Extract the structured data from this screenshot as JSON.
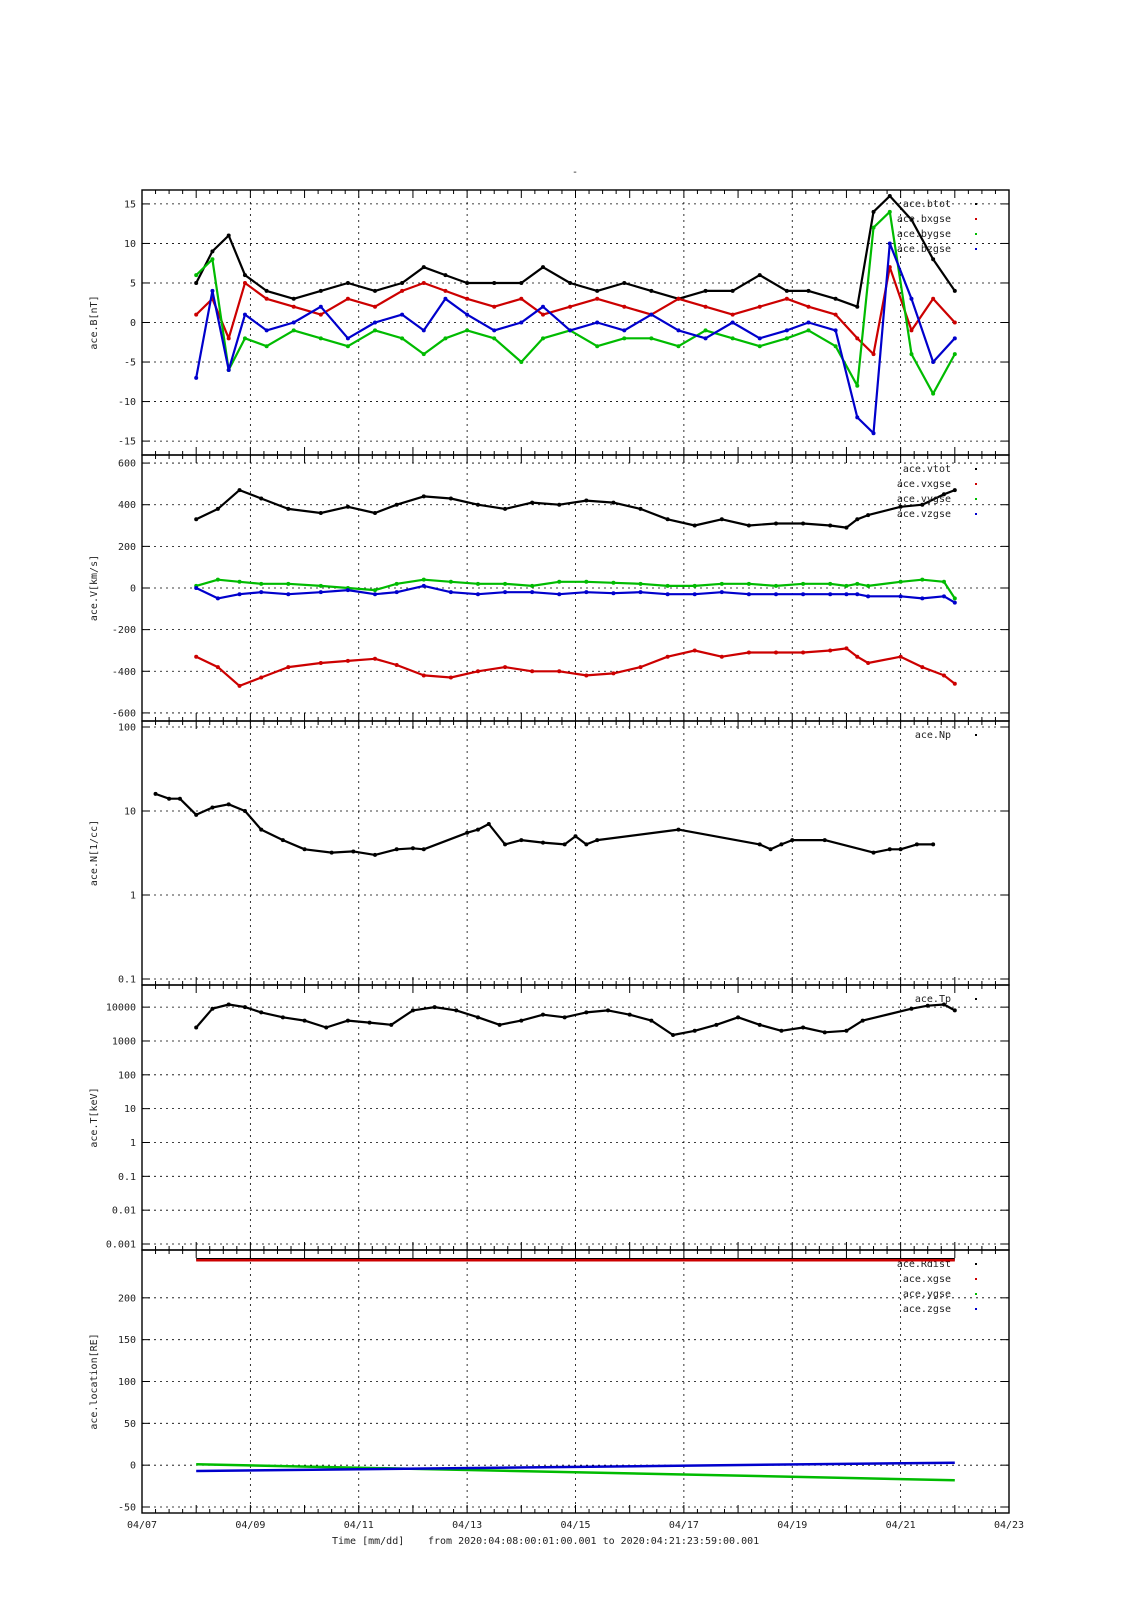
{
  "title": "-",
  "footer": {
    "xlabel": "Time [mm/dd]",
    "range_text": "from 2020:04:08:00:01:00.001  to  2020:04:21:23:59:00.001"
  },
  "colors": {
    "black": "#000000",
    "red": "#cc0000",
    "green": "#00bb00",
    "blue": "#0000cc"
  },
  "chart_data": [
    {
      "type": "scatter",
      "ylabel": "ace.B[nT]",
      "ylim": [
        -16,
        16
      ],
      "yticks": [
        -15,
        -10,
        -5,
        0,
        5,
        10,
        15
      ],
      "ytick_labels": [
        "-15",
        "-10",
        "-5",
        "0",
        "5",
        "10",
        "15"
      ],
      "xlim_days": [
        7,
        23
      ],
      "xticks": [
        "04/07",
        "04/09",
        "04/11",
        "04/13",
        "04/15",
        "04/17",
        "04/19",
        "04/21",
        "04/23"
      ],
      "grid": true,
      "legend_position": "top-right",
      "series": [
        {
          "name": "ace.btot",
          "color": "#000000",
          "x": [
            8.0,
            8.3,
            8.6,
            8.9,
            9.3,
            9.8,
            10.3,
            10.8,
            11.3,
            11.8,
            12.2,
            12.6,
            13.0,
            13.5,
            14.0,
            14.4,
            14.9,
            15.4,
            15.9,
            16.4,
            16.9,
            17.4,
            17.9,
            18.4,
            18.9,
            19.3,
            19.8,
            20.2,
            20.5,
            20.8,
            21.2,
            21.6,
            22.0
          ],
          "y": [
            5,
            9,
            11,
            6,
            4,
            3,
            4,
            5,
            4,
            5,
            7,
            6,
            5,
            5,
            5,
            7,
            5,
            4,
            5,
            4,
            3,
            4,
            4,
            6,
            4,
            4,
            3,
            2,
            14,
            16,
            13,
            8,
            4
          ]
        },
        {
          "name": "ace.bxgse",
          "color": "#cc0000",
          "x": [
            8.0,
            8.3,
            8.6,
            8.9,
            9.3,
            9.8,
            10.3,
            10.8,
            11.3,
            11.8,
            12.2,
            12.6,
            13.0,
            13.5,
            14.0,
            14.4,
            14.9,
            15.4,
            15.9,
            16.4,
            16.9,
            17.4,
            17.9,
            18.4,
            18.9,
            19.3,
            19.8,
            20.2,
            20.5,
            20.8,
            21.2,
            21.6,
            22.0
          ],
          "y": [
            1,
            3,
            -2,
            5,
            3,
            2,
            1,
            3,
            2,
            4,
            5,
            4,
            3,
            2,
            3,
            1,
            2,
            3,
            2,
            1,
            3,
            2,
            1,
            2,
            3,
            2,
            1,
            -2,
            -4,
            7,
            -1,
            3,
            0
          ]
        },
        {
          "name": "ace.bygse",
          "color": "#00bb00",
          "x": [
            8.0,
            8.3,
            8.6,
            8.9,
            9.3,
            9.8,
            10.3,
            10.8,
            11.3,
            11.8,
            12.2,
            12.6,
            13.0,
            13.5,
            14.0,
            14.4,
            14.9,
            15.4,
            15.9,
            16.4,
            16.9,
            17.4,
            17.9,
            18.4,
            18.9,
            19.3,
            19.8,
            20.2,
            20.5,
            20.8,
            21.2,
            21.6,
            22.0
          ],
          "y": [
            6,
            8,
            -6,
            -2,
            -3,
            -1,
            -2,
            -3,
            -1,
            -2,
            -4,
            -2,
            -1,
            -2,
            -5,
            -2,
            -1,
            -3,
            -2,
            -2,
            -3,
            -1,
            -2,
            -3,
            -2,
            -1,
            -3,
            -8,
            12,
            14,
            -4,
            -9,
            -4
          ]
        },
        {
          "name": "ace.bzgse",
          "color": "#0000cc",
          "x": [
            8.0,
            8.3,
            8.6,
            8.9,
            9.3,
            9.8,
            10.3,
            10.8,
            11.3,
            11.8,
            12.2,
            12.6,
            13.0,
            13.5,
            14.0,
            14.4,
            14.9,
            15.4,
            15.9,
            16.4,
            16.9,
            17.4,
            17.9,
            18.4,
            18.9,
            19.3,
            19.8,
            20.2,
            20.5,
            20.8,
            21.2,
            21.6,
            22.0
          ],
          "y": [
            -7,
            4,
            -6,
            1,
            -1,
            0,
            2,
            -2,
            0,
            1,
            -1,
            3,
            1,
            -1,
            0,
            2,
            -1,
            0,
            -1,
            1,
            -1,
            -2,
            0,
            -2,
            -1,
            0,
            -1,
            -12,
            -14,
            10,
            3,
            -5,
            -2
          ]
        }
      ]
    },
    {
      "type": "scatter",
      "ylabel": "ace.V[km/s]",
      "ylim": [
        -610,
        610
      ],
      "yticks": [
        -600,
        -400,
        -200,
        0,
        200,
        400,
        600
      ],
      "ytick_labels": [
        "-600",
        "-400",
        "-200",
        "0",
        "200",
        "400",
        "600"
      ],
      "xlim_days": [
        7,
        23
      ],
      "grid": true,
      "legend_position": "top-right",
      "series": [
        {
          "name": "ace.vtot",
          "color": "#000000",
          "x": [
            8.0,
            8.4,
            8.8,
            9.2,
            9.7,
            10.3,
            10.8,
            11.3,
            11.7,
            12.2,
            12.7,
            13.2,
            13.7,
            14.2,
            14.7,
            15.2,
            15.7,
            16.2,
            16.7,
            17.2,
            17.7,
            18.2,
            18.7,
            19.2,
            19.7,
            20.0,
            20.2,
            20.4,
            21.0,
            21.4,
            21.8,
            22.0
          ],
          "y": [
            330,
            380,
            470,
            430,
            380,
            360,
            390,
            360,
            400,
            440,
            430,
            400,
            380,
            410,
            400,
            420,
            410,
            380,
            330,
            300,
            330,
            300,
            310,
            310,
            300,
            290,
            330,
            350,
            390,
            400,
            450,
            470
          ]
        },
        {
          "name": "ace.vxgse",
          "color": "#cc0000",
          "x": [
            8.0,
            8.4,
            8.8,
            9.2,
            9.7,
            10.3,
            10.8,
            11.3,
            11.7,
            12.2,
            12.7,
            13.2,
            13.7,
            14.2,
            14.7,
            15.2,
            15.7,
            16.2,
            16.7,
            17.2,
            17.7,
            18.2,
            18.7,
            19.2,
            19.7,
            20.0,
            20.2,
            20.4,
            21.0,
            21.4,
            21.8,
            22.0
          ],
          "y": [
            -330,
            -380,
            -470,
            -430,
            -380,
            -360,
            -350,
            -340,
            -370,
            -420,
            -430,
            -400,
            -380,
            -400,
            -400,
            -420,
            -410,
            -380,
            -330,
            -300,
            -330,
            -310,
            -310,
            -310,
            -300,
            -290,
            -330,
            -360,
            -330,
            -380,
            -420,
            -460
          ]
        },
        {
          "name": "ace.vygse",
          "color": "#00bb00",
          "x": [
            8.0,
            8.4,
            8.8,
            9.2,
            9.7,
            10.3,
            10.8,
            11.3,
            11.7,
            12.2,
            12.7,
            13.2,
            13.7,
            14.2,
            14.7,
            15.2,
            15.7,
            16.2,
            16.7,
            17.2,
            17.7,
            18.2,
            18.7,
            19.2,
            19.7,
            20.0,
            20.2,
            20.4,
            21.0,
            21.4,
            21.8,
            22.0
          ],
          "y": [
            10,
            40,
            30,
            20,
            20,
            10,
            0,
            -10,
            20,
            40,
            30,
            20,
            20,
            10,
            30,
            30,
            25,
            20,
            10,
            10,
            20,
            20,
            10,
            20,
            20,
            10,
            20,
            10,
            30,
            40,
            30,
            -50
          ]
        },
        {
          "name": "ace.vzgse",
          "color": "#0000cc",
          "x": [
            8.0,
            8.4,
            8.8,
            9.2,
            9.7,
            10.3,
            10.8,
            11.3,
            11.7,
            12.2,
            12.7,
            13.2,
            13.7,
            14.2,
            14.7,
            15.2,
            15.7,
            16.2,
            16.7,
            17.2,
            17.7,
            18.2,
            18.7,
            19.2,
            19.7,
            20.0,
            20.2,
            20.4,
            21.0,
            21.4,
            21.8,
            22.0
          ],
          "y": [
            0,
            -50,
            -30,
            -20,
            -30,
            -20,
            -10,
            -30,
            -20,
            10,
            -20,
            -30,
            -20,
            -20,
            -30,
            -20,
            -25,
            -20,
            -30,
            -30,
            -20,
            -30,
            -30,
            -30,
            -30,
            -30,
            -30,
            -40,
            -40,
            -50,
            -40,
            -70
          ]
        }
      ]
    },
    {
      "type": "scatter",
      "ylabel": "ace.N[1/cc]",
      "yscale": "log",
      "ylim": [
        0.1,
        100
      ],
      "yticks": [
        0.1,
        1,
        10,
        100
      ],
      "ytick_labels": [
        "0.1",
        "1",
        "10",
        "100"
      ],
      "xlim_days": [
        7,
        23
      ],
      "grid": true,
      "legend_position": "top-right",
      "series": [
        {
          "name": "ace.Np",
          "color": "#000000",
          "x": [
            7.25,
            7.5,
            7.7,
            8.0,
            8.3,
            8.6,
            8.9,
            9.2,
            9.6,
            10.0,
            10.5,
            10.9,
            11.3,
            11.7,
            12.0,
            12.2,
            13.0,
            13.2,
            13.4,
            13.7,
            14.0,
            14.4,
            14.8,
            15.0,
            15.2,
            15.4,
            16.9,
            18.4,
            18.6,
            18.8,
            19.0,
            19.6,
            20.5,
            20.8,
            21.0,
            21.3,
            21.6
          ],
          "y": [
            16,
            14,
            14,
            9,
            11,
            12,
            10,
            6,
            4.5,
            3.5,
            3.2,
            3.3,
            3.0,
            3.5,
            3.6,
            3.5,
            5.5,
            6,
            7,
            4,
            4.5,
            4.2,
            4.0,
            5,
            4,
            4.5,
            6,
            4,
            3.5,
            4,
            4.5,
            4.5,
            3.2,
            3.5,
            3.5,
            4,
            4
          ]
        }
      ]
    },
    {
      "type": "scatter",
      "ylabel": "ace.T[keV]",
      "yscale": "log",
      "ylim": [
        0.001,
        30000
      ],
      "yticks": [
        0.001,
        0.01,
        0.1,
        1,
        10,
        100,
        1000,
        10000
      ],
      "ytick_labels": [
        "0.001",
        "0.01",
        "0.1",
        "1",
        "10",
        "100",
        "1000",
        "10000"
      ],
      "xlim_days": [
        7,
        23
      ],
      "grid": true,
      "legend_position": "top-right",
      "series": [
        {
          "name": "ace.Tp",
          "color": "#000000",
          "x": [
            8.0,
            8.3,
            8.6,
            8.9,
            9.2,
            9.6,
            10.0,
            10.4,
            10.8,
            11.2,
            11.6,
            12.0,
            12.4,
            12.8,
            13.2,
            13.6,
            14.0,
            14.4,
            14.8,
            15.2,
            15.6,
            16.0,
            16.4,
            16.8,
            17.2,
            17.6,
            18.0,
            18.4,
            18.8,
            19.2,
            19.6,
            20.0,
            20.3,
            21.2,
            21.5,
            21.8,
            22.0
          ],
          "y": [
            2500,
            9000,
            12000,
            10000,
            7000,
            5000,
            4000,
            2500,
            4000,
            3500,
            3000,
            8000,
            10000,
            8000,
            5000,
            3000,
            4000,
            6000,
            5000,
            7000,
            8000,
            6000,
            4000,
            1500,
            2000,
            3000,
            5000,
            3000,
            2000,
            2500,
            1800,
            2000,
            4000,
            9000,
            11000,
            12000,
            8000
          ]
        }
      ]
    },
    {
      "type": "line",
      "ylabel": "ace.location[RE]",
      "ylim": [
        -50,
        250
      ],
      "yticks": [
        -50,
        0,
        50,
        100,
        150,
        200
      ],
      "ytick_labels": [
        "-50",
        "0",
        "50",
        "100",
        "150",
        "200"
      ],
      "xlim_days": [
        7,
        23
      ],
      "xtick_labels": [
        "04/07",
        "04/09",
        "04/11",
        "04/13",
        "04/15",
        "04/17",
        "04/19",
        "04/21",
        "04/23"
      ],
      "grid": true,
      "legend_position": "top-right",
      "series": [
        {
          "name": "ace.Rdist",
          "color": "#000000",
          "x": [
            8.0,
            22.0
          ],
          "y": [
            246,
            246
          ]
        },
        {
          "name": "ace.xgse",
          "color": "#cc0000",
          "x": [
            8.0,
            22.0
          ],
          "y": [
            245,
            245
          ]
        },
        {
          "name": "ace.ygse",
          "color": "#00bb00",
          "x": [
            8.0,
            22.0
          ],
          "y": [
            1,
            -18
          ]
        },
        {
          "name": "ace.zgse",
          "color": "#0000cc",
          "x": [
            8.0,
            22.0
          ],
          "y": [
            -7,
            3
          ]
        }
      ]
    }
  ]
}
